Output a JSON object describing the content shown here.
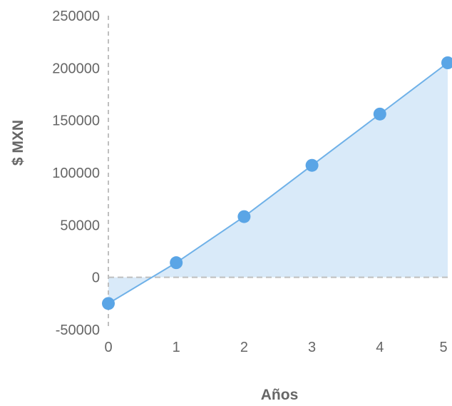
{
  "chart_data": {
    "type": "area",
    "xlabel": "Años",
    "ylabel": "$ MXN",
    "x": [
      0,
      1,
      2,
      3,
      4,
      5
    ],
    "series": [
      {
        "values": [
          -25000,
          14000,
          58000,
          107000,
          156000,
          205000
        ]
      }
    ],
    "xlim": [
      0,
      5
    ],
    "ylim": [
      -50000,
      250000
    ],
    "x_ticks": [
      "0",
      "1",
      "2",
      "3",
      "4",
      "5"
    ],
    "y_ticks": [
      "-50000",
      "0",
      "50000",
      "100000",
      "150000",
      "200000",
      "250000"
    ],
    "y_tick_values": [
      -50000,
      0,
      50000,
      100000,
      150000,
      200000,
      250000
    ],
    "grid": false,
    "reference_line_y": 0,
    "colors": {
      "line": "#6fb1e8",
      "marker": "#5aa5e6",
      "fill": "#d9eaf9",
      "axis_dash": "#bfbfbf",
      "tick_text": "#666666",
      "title_text": "#666666"
    }
  }
}
